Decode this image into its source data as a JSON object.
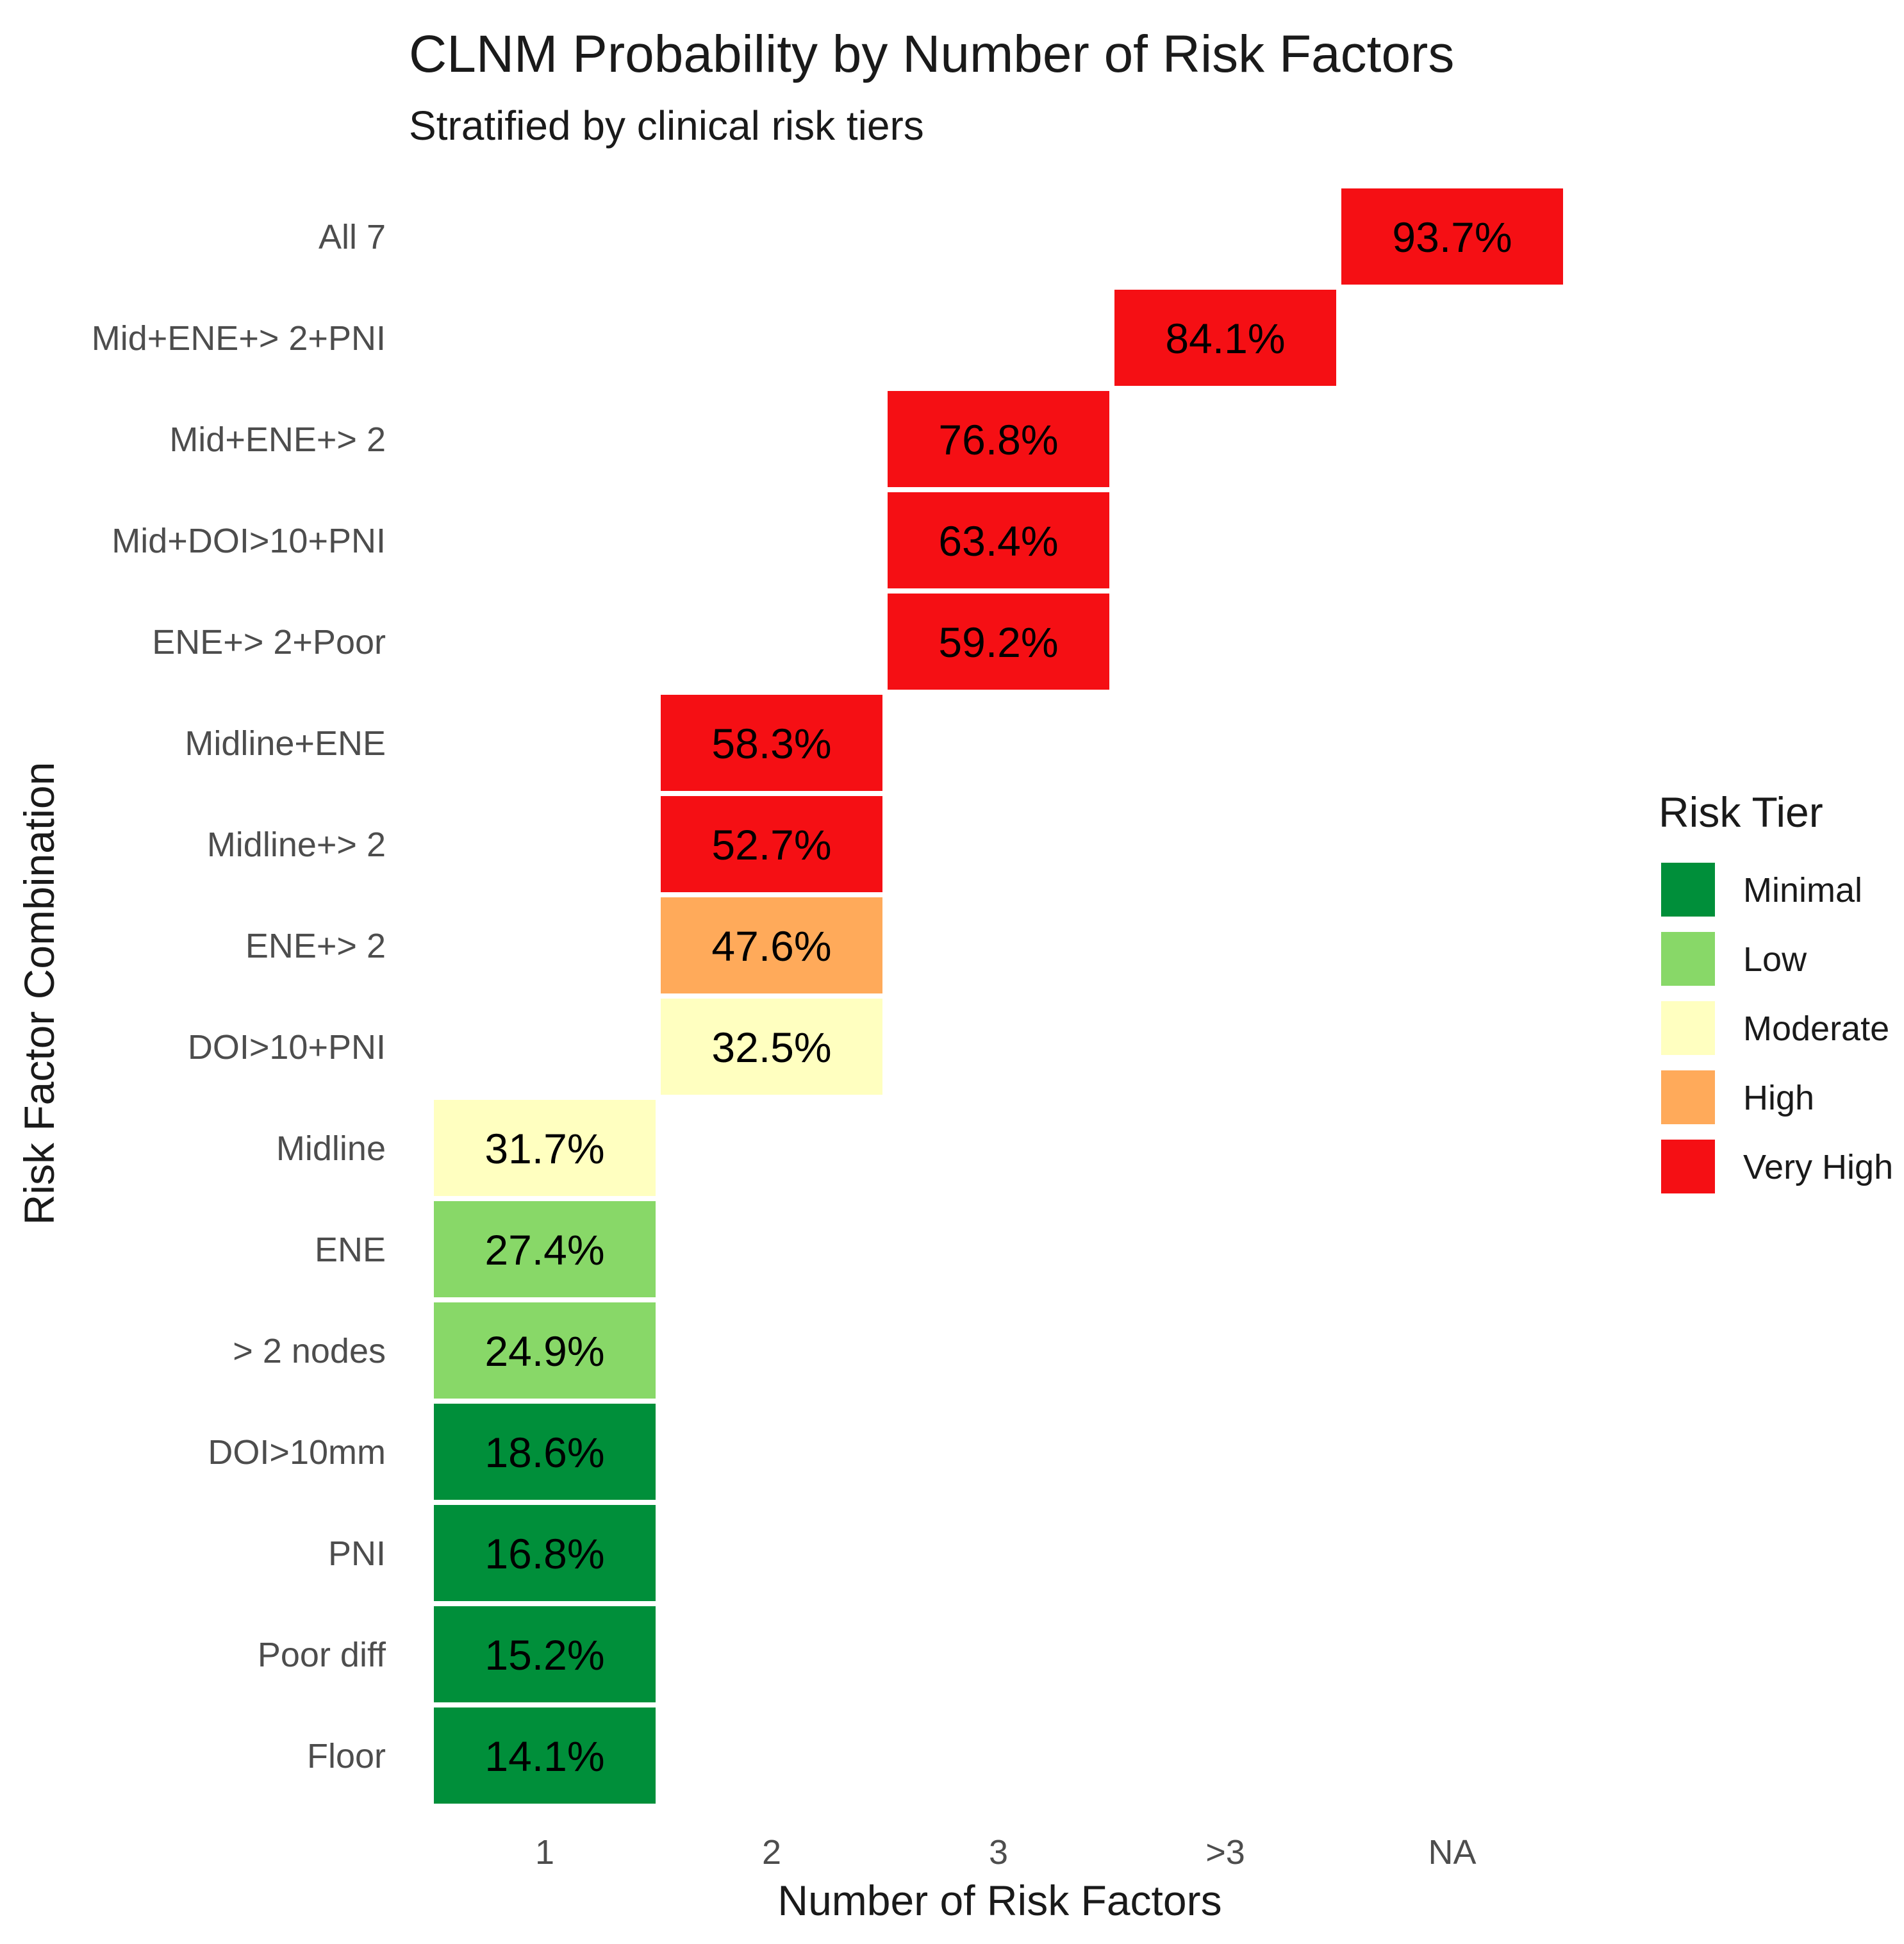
{
  "chart_data": {
    "type": "heatmap",
    "title": "CLNM Probability by Number of Risk Factors",
    "subtitle": "Stratified by clinical risk tiers",
    "xlabel": "Number of Risk Factors",
    "ylabel": "Risk Factor Combination",
    "x_categories": [
      "1",
      "2",
      "3",
      ">3",
      "NA"
    ],
    "y_categories": [
      "All 7",
      "Mid+ENE+> 2+PNI",
      "Mid+ENE+> 2",
      "Mid+DOI>10+PNI",
      "ENE+> 2+Poor",
      "Midline+ENE",
      "Midline+> 2",
      "ENE+> 2",
      "DOI>10+PNI",
      "Midline",
      "ENE",
      "> 2 nodes",
      "DOI>10mm",
      "PNI",
      "Poor diff",
      "Floor"
    ],
    "cells": [
      {
        "combination": "All 7",
        "factors": "NA",
        "probability": 93.7,
        "label": "93.7%",
        "tier": "Very High"
      },
      {
        "combination": "Mid+ENE+> 2+PNI",
        "factors": ">3",
        "probability": 84.1,
        "label": "84.1%",
        "tier": "Very High"
      },
      {
        "combination": "Mid+ENE+> 2",
        "factors": "3",
        "probability": 76.8,
        "label": "76.8%",
        "tier": "Very High"
      },
      {
        "combination": "Mid+DOI>10+PNI",
        "factors": "3",
        "probability": 63.4,
        "label": "63.4%",
        "tier": "Very High"
      },
      {
        "combination": "ENE+> 2+Poor",
        "factors": "3",
        "probability": 59.2,
        "label": "59.2%",
        "tier": "Very High"
      },
      {
        "combination": "Midline+ENE",
        "factors": "2",
        "probability": 58.3,
        "label": "58.3%",
        "tier": "Very High"
      },
      {
        "combination": "Midline+> 2",
        "factors": "2",
        "probability": 52.7,
        "label": "52.7%",
        "tier": "Very High"
      },
      {
        "combination": "ENE+> 2",
        "factors": "2",
        "probability": 47.6,
        "label": "47.6%",
        "tier": "High"
      },
      {
        "combination": "DOI>10+PNI",
        "factors": "2",
        "probability": 32.5,
        "label": "32.5%",
        "tier": "Moderate"
      },
      {
        "combination": "Midline",
        "factors": "1",
        "probability": 31.7,
        "label": "31.7%",
        "tier": "Moderate"
      },
      {
        "combination": "ENE",
        "factors": "1",
        "probability": 27.4,
        "label": "27.4%",
        "tier": "Low"
      },
      {
        "combination": "> 2 nodes",
        "factors": "1",
        "probability": 24.9,
        "label": "24.9%",
        "tier": "Low"
      },
      {
        "combination": "DOI>10mm",
        "factors": "1",
        "probability": 18.6,
        "label": "18.6%",
        "tier": "Minimal"
      },
      {
        "combination": "PNI",
        "factors": "1",
        "probability": 16.8,
        "label": "16.8%",
        "tier": "Minimal"
      },
      {
        "combination": "Poor diff",
        "factors": "1",
        "probability": 15.2,
        "label": "15.2%",
        "tier": "Minimal"
      },
      {
        "combination": "Floor",
        "factors": "1",
        "probability": 14.1,
        "label": "14.1%",
        "tier": "Minimal"
      }
    ],
    "legend": {
      "title": "Risk Tier",
      "placement": "right",
      "items": [
        {
          "label": "Minimal",
          "color": "#008f3a"
        },
        {
          "label": "Low",
          "color": "#88d868"
        },
        {
          "label": "Moderate",
          "color": "#ffffc0"
        },
        {
          "label": "High",
          "color": "#ffaa5a"
        },
        {
          "label": "Very High",
          "color": "#f50f14"
        }
      ]
    },
    "grid": false
  }
}
